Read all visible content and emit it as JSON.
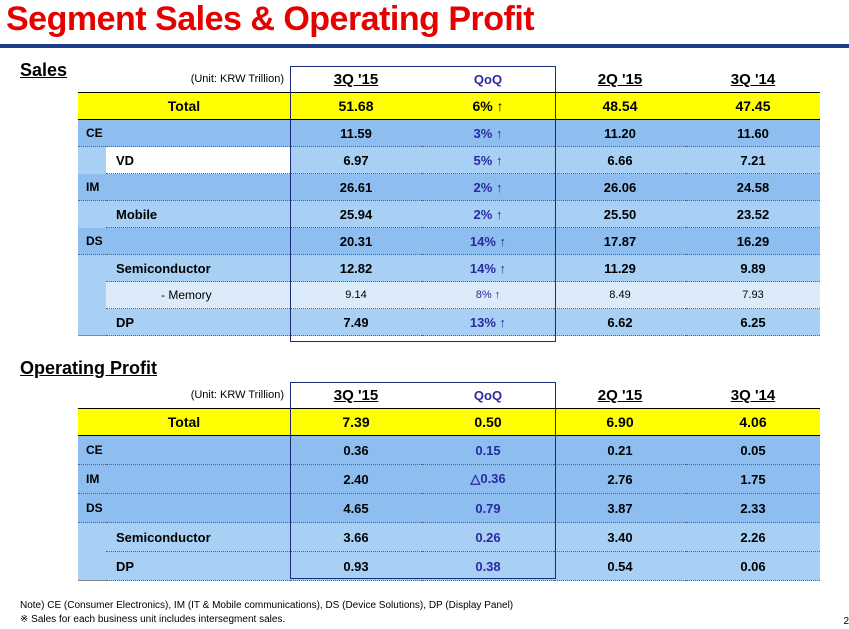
{
  "title": "Segment Sales & Operating Profit",
  "sales": {
    "label": "Sales",
    "unit": "(Unit: KRW Trillion)",
    "columns": [
      "3Q '15",
      "QoQ",
      "2Q '15",
      "3Q '14"
    ],
    "total": {
      "label": "Total",
      "values": [
        "51.68",
        "6% ↑",
        "48.54",
        "47.45"
      ]
    },
    "rows": [
      {
        "label": "CE",
        "values": [
          "11.59",
          "3% ↑",
          "11.20",
          "11.60"
        ]
      },
      {
        "label": "VD",
        "values": [
          "6.97",
          "5% ↑",
          "6.66",
          "7.21"
        ]
      },
      {
        "label": "IM",
        "values": [
          "26.61",
          "2% ↑",
          "26.06",
          "24.58"
        ]
      },
      {
        "label": "Mobile",
        "values": [
          "25.94",
          "2% ↑",
          "25.50",
          "23.52"
        ]
      },
      {
        "label": "DS",
        "values": [
          "20.31",
          "14% ↑",
          "17.87",
          "16.29"
        ]
      },
      {
        "label": "Semiconductor",
        "values": [
          "12.82",
          "14% ↑",
          "11.29",
          "9.89"
        ]
      },
      {
        "label": "- Memory",
        "values": [
          "9.14",
          "8% ↑",
          "8.49",
          "7.93"
        ]
      },
      {
        "label": "DP",
        "values": [
          "7.49",
          "13% ↑",
          "6.62",
          "6.25"
        ]
      }
    ]
  },
  "op": {
    "label": "Operating Profit",
    "unit": "(Unit: KRW Trillion)",
    "columns": [
      "3Q '15",
      "QoQ",
      "2Q '15",
      "3Q '14"
    ],
    "total": {
      "label": "Total",
      "values": [
        "7.39",
        "0.50",
        "6.90",
        "4.06"
      ]
    },
    "rows": [
      {
        "label": "CE",
        "values": [
          "0.36",
          "0.15",
          "0.21",
          "0.05"
        ]
      },
      {
        "label": "IM",
        "values": [
          "2.40",
          "△0.36",
          "2.76",
          "1.75"
        ]
      },
      {
        "label": "DS",
        "values": [
          "4.65",
          "0.79",
          "3.87",
          "2.33"
        ]
      },
      {
        "label": "Semiconductor",
        "values": [
          "3.66",
          "0.26",
          "3.40",
          "2.26"
        ]
      },
      {
        "label": "DP",
        "values": [
          "0.93",
          "0.38",
          "0.54",
          "0.06"
        ]
      }
    ]
  },
  "notes": {
    "line1": "Note) CE (Consumer Electronics), IM (IT & Mobile communications),  DS (Device Solutions), DP (Display Panel)",
    "line2": "※ Sales for each business unit includes intersegment sales."
  },
  "page_number": "2",
  "colors": {
    "title": "#e60000",
    "total_row": "#ffff00",
    "segment_row": "#8ebef0",
    "qoq_text": "#2a2aa0"
  }
}
